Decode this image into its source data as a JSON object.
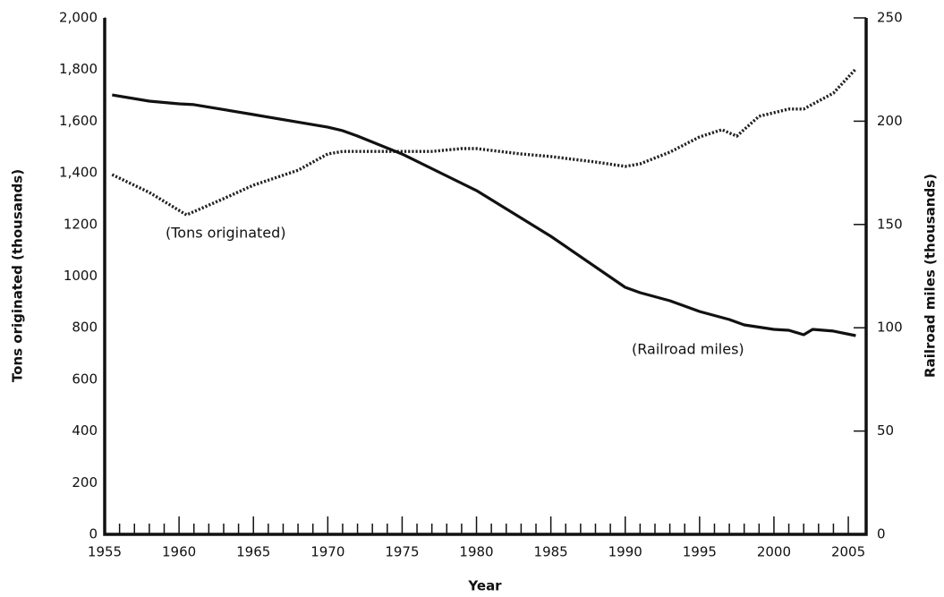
{
  "chart_data": {
    "type": "line",
    "x_label": "Year",
    "y_label": "Tons originated (thousands)",
    "y2_label": "Railroad miles (thousands)",
    "xlim": [
      1955,
      2006.2
    ],
    "xticks": [
      1955,
      1960,
      1965,
      1970,
      1975,
      1980,
      1985,
      1990,
      1995,
      2000,
      2005
    ],
    "ylim": [
      0,
      2000
    ],
    "yticks": [
      0,
      200,
      400,
      600,
      800,
      1000,
      1200,
      {
        "value": 1400,
        "label": "1,400"
      },
      {
        "value": 1600,
        "label": "1,600"
      },
      {
        "value": 1800,
        "label": "1,800"
      },
      {
        "value": 2000,
        "label": "2,000"
      }
    ],
    "y2lim": [
      0,
      250
    ],
    "y2ticks": [
      0,
      50,
      100,
      150,
      200,
      250
    ],
    "series": [
      {
        "name": "(Tons originated)",
        "color": "#222222",
        "style": "dotted",
        "x": [
          1955.5,
          1958,
          1960.5,
          1963,
          1965,
          1968,
          1970,
          1971,
          1975,
          1977,
          1979,
          1980,
          1983,
          1985,
          1988,
          1990,
          1991,
          1993,
          1995,
          1996.5,
          1997.5,
          1999,
          2000,
          2001,
          2002,
          2004,
          2005.5
        ],
        "values": [
          1393,
          1324,
          1237,
          1300,
          1352,
          1410,
          1473,
          1483,
          1483,
          1483,
          1494,
          1494,
          1473,
          1463,
          1442,
          1425,
          1435,
          1480,
          1539,
          1567,
          1542,
          1619,
          1633,
          1647,
          1647,
          1709,
          1802
        ]
      },
      {
        "name": "(Railroad miles)",
        "color": "#111111",
        "style": "solid",
        "axis": "y2",
        "x": [
          1955.5,
          1958,
          1960,
          1961,
          1965,
          1970,
          1971,
          1972,
          1975,
          1980,
          1985,
          1990,
          1991,
          1993,
          1995,
          1997,
          1998,
          2000,
          2001,
          2002,
          2002.6,
          2004,
          2005.5
        ],
        "values": [
          212.7,
          209.7,
          208.4,
          208,
          203.2,
          197.1,
          195.4,
          192.8,
          184.1,
          166.4,
          144.3,
          119.6,
          117,
          113.1,
          107.9,
          104,
          101.4,
          99.2,
          98.8,
          96.6,
          99.2,
          98.4,
          96.2
        ]
      }
    ]
  }
}
